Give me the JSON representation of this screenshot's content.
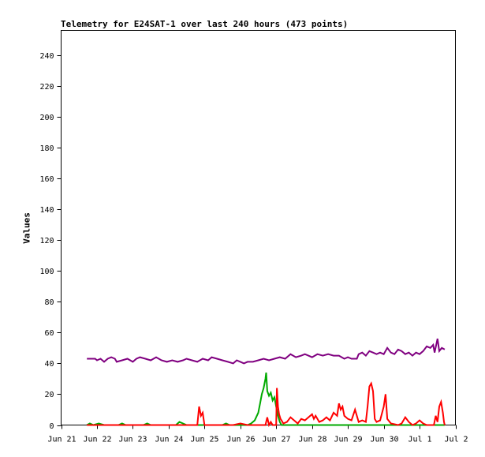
{
  "chart_data": {
    "type": "line",
    "title": "Telemetry for E24SAT-1 over last 240 hours (473 points)",
    "ylabel": "Values",
    "xlabel": "",
    "xlim": [
      0,
      11
    ],
    "ylim": [
      0,
      256
    ],
    "yticks": [
      0,
      20,
      40,
      60,
      80,
      100,
      120,
      140,
      160,
      180,
      200,
      220,
      240
    ],
    "xticks": [
      {
        "x": 0,
        "label": "Jun 21"
      },
      {
        "x": 1,
        "label": "Jun 22"
      },
      {
        "x": 2,
        "label": "Jun 23"
      },
      {
        "x": 3,
        "label": "Jun 24"
      },
      {
        "x": 4,
        "label": "Jun 25"
      },
      {
        "x": 5,
        "label": "Jun 26"
      },
      {
        "x": 6,
        "label": "Jun 27"
      },
      {
        "x": 7,
        "label": "Jun 28"
      },
      {
        "x": 8,
        "label": "Jun 29"
      },
      {
        "x": 9,
        "label": "Jun 30"
      },
      {
        "x": 10,
        "label": "Jul 1"
      },
      {
        "x": 11,
        "label": "Jul 2"
      }
    ],
    "grid": false,
    "series": [
      {
        "color": "#800080",
        "points": [
          [
            0.72,
            43
          ],
          [
            0.95,
            43
          ],
          [
            1.0,
            42
          ],
          [
            1.1,
            43
          ],
          [
            1.2,
            41
          ],
          [
            1.3,
            43
          ],
          [
            1.4,
            44
          ],
          [
            1.5,
            43
          ],
          [
            1.55,
            41
          ],
          [
            1.7,
            42
          ],
          [
            1.85,
            43
          ],
          [
            2.0,
            41
          ],
          [
            2.1,
            43
          ],
          [
            2.2,
            44
          ],
          [
            2.35,
            43
          ],
          [
            2.5,
            42
          ],
          [
            2.65,
            44
          ],
          [
            2.8,
            42
          ],
          [
            2.95,
            41
          ],
          [
            3.1,
            42
          ],
          [
            3.25,
            41
          ],
          [
            3.4,
            42
          ],
          [
            3.5,
            43
          ],
          [
            3.65,
            42
          ],
          [
            3.8,
            41
          ],
          [
            3.95,
            43
          ],
          [
            4.1,
            42
          ],
          [
            4.2,
            44
          ],
          [
            4.35,
            43
          ],
          [
            4.5,
            42
          ],
          [
            4.65,
            41
          ],
          [
            4.8,
            40
          ],
          [
            4.9,
            42
          ],
          [
            5.0,
            41
          ],
          [
            5.1,
            40
          ],
          [
            5.2,
            41
          ],
          [
            5.35,
            41
          ],
          [
            5.5,
            42
          ],
          [
            5.65,
            43
          ],
          [
            5.8,
            42
          ],
          [
            5.95,
            43
          ],
          [
            6.1,
            44
          ],
          [
            6.25,
            43
          ],
          [
            6.4,
            46
          ],
          [
            6.55,
            44
          ],
          [
            6.7,
            45
          ],
          [
            6.8,
            46
          ],
          [
            6.9,
            45
          ],
          [
            7.0,
            44
          ],
          [
            7.15,
            46
          ],
          [
            7.3,
            45
          ],
          [
            7.45,
            46
          ],
          [
            7.6,
            45
          ],
          [
            7.75,
            45
          ],
          [
            7.9,
            43
          ],
          [
            8.0,
            44
          ],
          [
            8.1,
            43
          ],
          [
            8.25,
            43
          ],
          [
            8.3,
            46
          ],
          [
            8.4,
            47
          ],
          [
            8.5,
            45
          ],
          [
            8.6,
            48
          ],
          [
            8.7,
            47
          ],
          [
            8.8,
            46
          ],
          [
            8.9,
            47
          ],
          [
            9.0,
            46
          ],
          [
            9.1,
            50
          ],
          [
            9.2,
            47
          ],
          [
            9.3,
            46
          ],
          [
            9.4,
            49
          ],
          [
            9.5,
            48
          ],
          [
            9.6,
            46
          ],
          [
            9.7,
            47
          ],
          [
            9.8,
            45
          ],
          [
            9.9,
            47
          ],
          [
            10.0,
            46
          ],
          [
            10.1,
            48
          ],
          [
            10.2,
            51
          ],
          [
            10.3,
            50
          ],
          [
            10.38,
            52
          ],
          [
            10.42,
            47
          ],
          [
            10.5,
            56
          ],
          [
            10.55,
            48
          ],
          [
            10.62,
            50
          ],
          [
            10.7,
            49
          ]
        ]
      },
      {
        "color": "#00aa00",
        "points": [
          [
            0.72,
            0
          ],
          [
            0.8,
            1
          ],
          [
            0.9,
            0
          ],
          [
            1.05,
            1
          ],
          [
            1.2,
            0
          ],
          [
            1.6,
            0
          ],
          [
            1.7,
            1
          ],
          [
            1.8,
            0
          ],
          [
            2.3,
            0
          ],
          [
            2.4,
            1
          ],
          [
            2.5,
            0
          ],
          [
            3.2,
            0
          ],
          [
            3.3,
            2
          ],
          [
            3.4,
            1
          ],
          [
            3.5,
            0
          ],
          [
            4.5,
            0
          ],
          [
            4.6,
            1
          ],
          [
            4.7,
            0
          ],
          [
            5.2,
            0
          ],
          [
            5.3,
            1
          ],
          [
            5.4,
            3
          ],
          [
            5.5,
            8
          ],
          [
            5.55,
            14
          ],
          [
            5.6,
            20
          ],
          [
            5.65,
            24
          ],
          [
            5.7,
            30
          ],
          [
            5.72,
            34
          ],
          [
            5.75,
            22
          ],
          [
            5.8,
            19
          ],
          [
            5.85,
            21
          ],
          [
            5.9,
            16
          ],
          [
            5.95,
            18
          ],
          [
            6.0,
            12
          ],
          [
            6.05,
            6
          ],
          [
            6.1,
            2
          ],
          [
            6.15,
            0
          ],
          [
            10.7,
            0
          ]
        ]
      },
      {
        "color": "#ff0000",
        "points": [
          [
            0.72,
            0
          ],
          [
            3.8,
            0
          ],
          [
            3.85,
            12
          ],
          [
            3.9,
            6
          ],
          [
            3.95,
            8
          ],
          [
            4.0,
            0
          ],
          [
            4.8,
            0
          ],
          [
            5.0,
            1
          ],
          [
            5.2,
            0
          ],
          [
            5.7,
            0
          ],
          [
            5.75,
            5
          ],
          [
            5.8,
            0
          ],
          [
            5.85,
            2
          ],
          [
            5.9,
            0
          ],
          [
            6.0,
            0
          ],
          [
            6.02,
            24
          ],
          [
            6.05,
            12
          ],
          [
            6.08,
            7
          ],
          [
            6.12,
            4
          ],
          [
            6.15,
            3
          ],
          [
            6.2,
            1
          ],
          [
            6.3,
            2
          ],
          [
            6.4,
            5
          ],
          [
            6.5,
            3
          ],
          [
            6.6,
            1
          ],
          [
            6.7,
            4
          ],
          [
            6.8,
            3
          ],
          [
            6.9,
            5
          ],
          [
            7.0,
            7
          ],
          [
            7.05,
            4
          ],
          [
            7.1,
            6
          ],
          [
            7.2,
            2
          ],
          [
            7.3,
            3
          ],
          [
            7.4,
            5
          ],
          [
            7.5,
            3
          ],
          [
            7.6,
            8
          ],
          [
            7.7,
            6
          ],
          [
            7.75,
            14
          ],
          [
            7.8,
            10
          ],
          [
            7.85,
            12
          ],
          [
            7.9,
            6
          ],
          [
            8.0,
            4
          ],
          [
            8.1,
            3
          ],
          [
            8.2,
            10
          ],
          [
            8.25,
            6
          ],
          [
            8.3,
            2
          ],
          [
            8.4,
            3
          ],
          [
            8.5,
            2
          ],
          [
            8.55,
            12
          ],
          [
            8.6,
            25
          ],
          [
            8.65,
            27
          ],
          [
            8.7,
            22
          ],
          [
            8.75,
            4
          ],
          [
            8.8,
            2
          ],
          [
            8.9,
            3
          ],
          [
            9.0,
            12
          ],
          [
            9.05,
            20
          ],
          [
            9.1,
            4
          ],
          [
            9.2,
            1
          ],
          [
            9.4,
            0
          ],
          [
            9.5,
            1
          ],
          [
            9.6,
            5
          ],
          [
            9.7,
            2
          ],
          [
            9.8,
            0
          ],
          [
            9.9,
            1
          ],
          [
            10.0,
            3
          ],
          [
            10.1,
            1
          ],
          [
            10.2,
            0
          ],
          [
            10.4,
            0
          ],
          [
            10.45,
            6
          ],
          [
            10.5,
            2
          ],
          [
            10.55,
            12
          ],
          [
            10.6,
            15
          ],
          [
            10.65,
            8
          ],
          [
            10.68,
            2
          ],
          [
            10.7,
            0
          ]
        ]
      }
    ]
  }
}
